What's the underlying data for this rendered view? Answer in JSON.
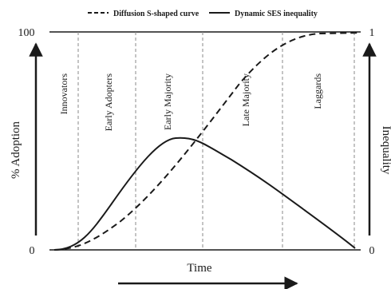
{
  "legend": {
    "dashed_label": "Diffusion S-shaped curve",
    "solid_label": "Dynamic SES inequality"
  },
  "y_axis_left": {
    "label": "% Adoption",
    "top": "100",
    "bottom": "0"
  },
  "y_axis_right": {
    "label": "Inequality",
    "top": "1",
    "bottom": "0"
  },
  "x_axis": {
    "label": "Time"
  },
  "categories": [
    "Innovators",
    "Early Adopters",
    "Early Majority",
    "Late Majority",
    "Laggards"
  ],
  "colors": {
    "ink": "#1a1a1a",
    "divider": "#8a8a8a",
    "label": "#6a6a6a"
  }
}
